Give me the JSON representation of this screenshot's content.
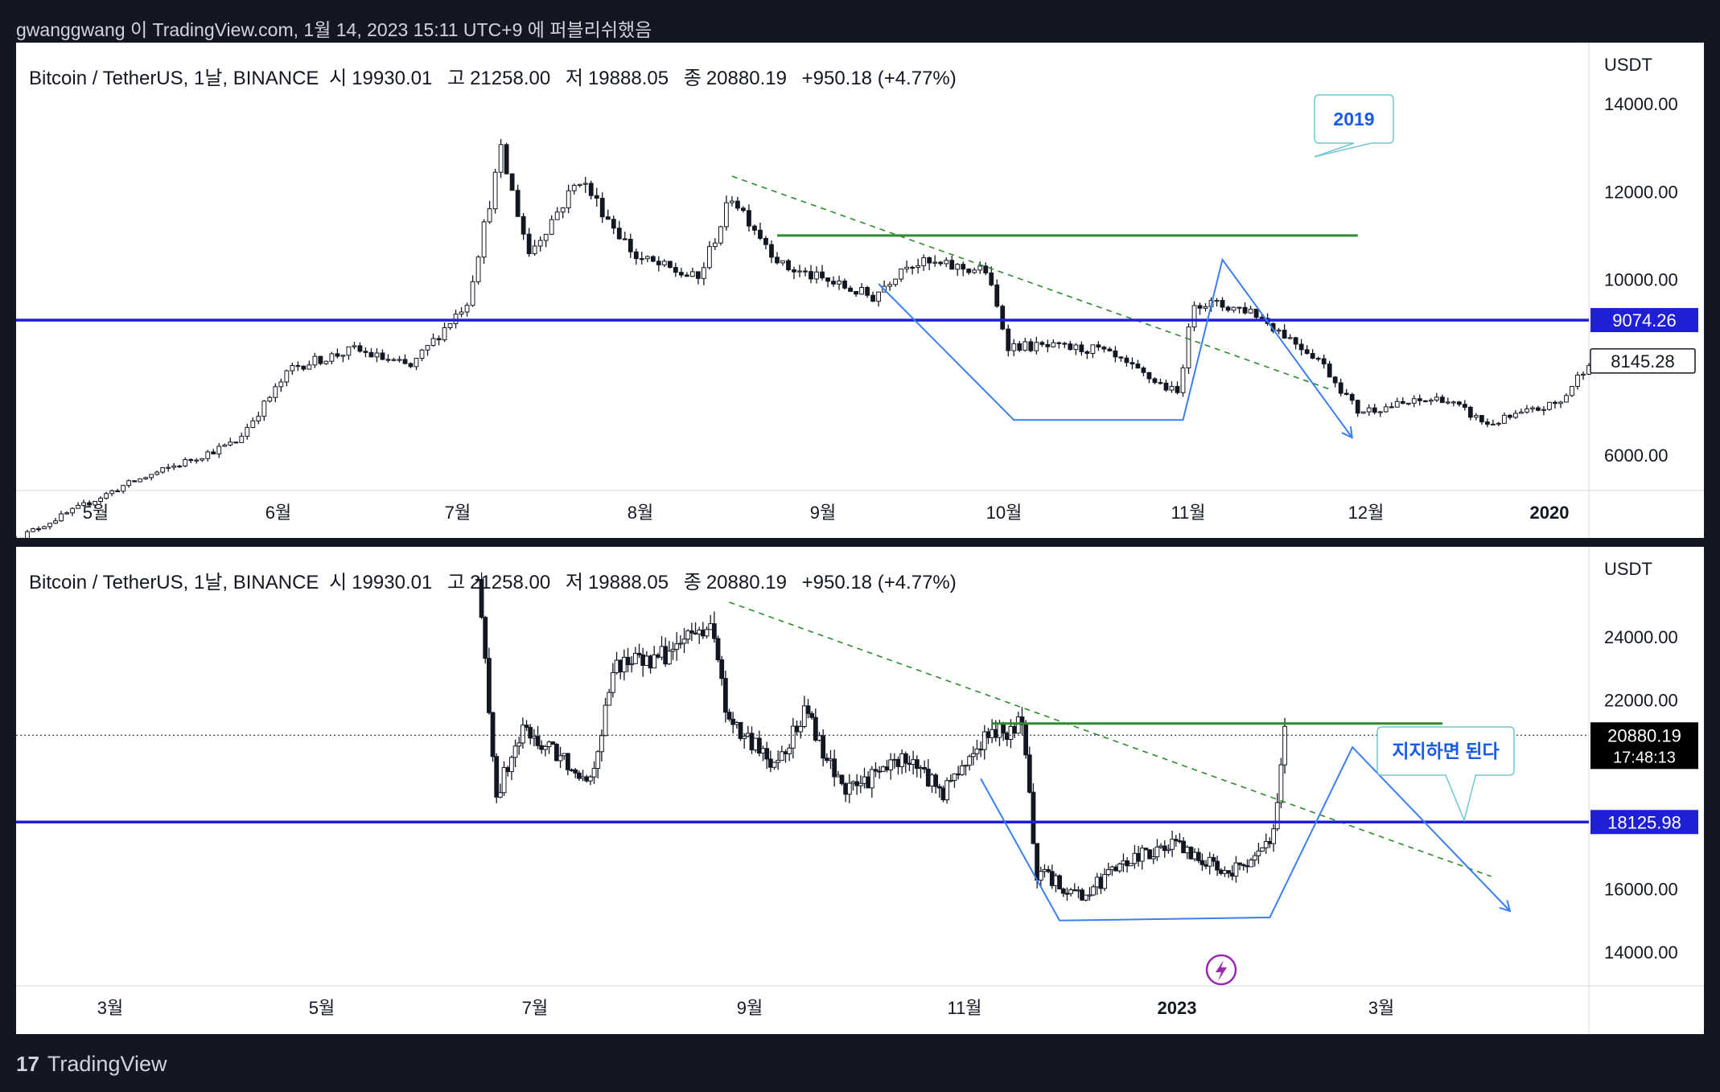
{
  "header": {
    "text": "gwanggwang 이 TradingView.com, 1월 14, 2023 15:11 UTC+9 에 퍼블리쉬했음"
  },
  "footer": {
    "brand": "TradingView",
    "logo": "17"
  },
  "colors": {
    "support": "#1f1fd6",
    "resistance": "#2e8b2e",
    "trend": "#2e8b2e",
    "path": "#3a7ff2",
    "candle": "#131722",
    "flash": "#9c27b0"
  },
  "legend": {
    "symbol": "Bitcoin / TetherUS, 1날, BINANCE",
    "open_label": "시",
    "open": "19930.01",
    "high_label": "고",
    "high": "21258.00",
    "low_label": "저",
    "low": "19888.05",
    "close_label": "종",
    "close": "20880.19",
    "change": "+950.18 (+4.77%)"
  },
  "chart_data": [
    {
      "type": "candlestick",
      "title": "Bitcoin / TetherUS, 1날, BINANCE",
      "unit": "USDT",
      "period": "2019",
      "x_labels": [
        "5월",
        "6월",
        "7월",
        "8월",
        "9월",
        "10월",
        "11월",
        "12월",
        "2020"
      ],
      "y_ticks": [
        "14000.00",
        "12000.00",
        "10000.00",
        "6000.00"
      ],
      "ylim": [
        5300,
        14600
      ],
      "support_level": "9074.26",
      "last_price": "8145.28",
      "annotation": "2019",
      "path_values": [
        {
          "x": "2019-09-01",
          "y": 9900
        },
        {
          "x": "2019-09-25",
          "y": 6800
        },
        {
          "x": "2019-10-25",
          "y": 6800
        },
        {
          "x": "2019-11-01",
          "y": 10450
        },
        {
          "x": "2019-11-24",
          "y": 6400
        }
      ],
      "close_path": [
        {
          "x": "2019-04-01",
          "c": 4100
        },
        {
          "x": "2019-04-20",
          "c": 5300
        },
        {
          "x": "2019-05-10",
          "c": 6300
        },
        {
          "x": "2019-05-20",
          "c": 8000
        },
        {
          "x": "2019-05-31",
          "c": 8400
        },
        {
          "x": "2019-06-10",
          "c": 8000
        },
        {
          "x": "2019-06-20",
          "c": 9500
        },
        {
          "x": "2019-06-26",
          "c": 12900
        },
        {
          "x": "2019-07-01",
          "c": 10600
        },
        {
          "x": "2019-07-10",
          "c": 12300
        },
        {
          "x": "2019-07-20",
          "c": 10500
        },
        {
          "x": "2019-07-31",
          "c": 10000
        },
        {
          "x": "2019-08-06",
          "c": 11900
        },
        {
          "x": "2019-08-15",
          "c": 10300
        },
        {
          "x": "2019-08-31",
          "c": 9600
        },
        {
          "x": "2019-09-06",
          "c": 10400
        },
        {
          "x": "2019-09-20",
          "c": 10200
        },
        {
          "x": "2019-09-24",
          "c": 8500
        },
        {
          "x": "2019-10-10",
          "c": 8400
        },
        {
          "x": "2019-10-24",
          "c": 7400
        },
        {
          "x": "2019-10-27",
          "c": 9500
        },
        {
          "x": "2019-11-06",
          "c": 9300
        },
        {
          "x": "2019-11-18",
          "c": 8200
        },
        {
          "x": "2019-11-25",
          "c": 7000
        },
        {
          "x": "2019-12-10",
          "c": 7300
        },
        {
          "x": "2019-12-18",
          "c": 6700
        },
        {
          "x": "2019-12-31",
          "c": 7200
        },
        {
          "x": "2020-01-05",
          "c": 8145
        }
      ]
    },
    {
      "type": "candlestick",
      "title": "Bitcoin / TetherUS, 1날, BINANCE",
      "unit": "USDT",
      "period": "2022-2023",
      "x_labels": [
        "3월",
        "5월",
        "7월",
        "9월",
        "11월",
        "2023",
        "3월"
      ],
      "y_ticks": [
        "24000.00",
        "22000.00",
        "16000.00",
        "14000.00"
      ],
      "ylim": [
        13000,
        26500
      ],
      "support_level": "18125.98",
      "last_price": "20880.19",
      "countdown": "17:48:13",
      "annotation": "지지하면 된다",
      "path_values": [
        {
          "x": "2022-10-25",
          "y": 19500
        },
        {
          "x": "2022-11-15",
          "y": 15000
        },
        {
          "x": "2023-01-10",
          "y": 15100
        },
        {
          "x": "2023-02-01",
          "y": 20500
        },
        {
          "x": "2023-03-15",
          "y": 15300
        }
      ],
      "close_path": [
        {
          "x": "2022-06-13",
          "c": 25800
        },
        {
          "x": "2022-06-18",
          "c": 19000
        },
        {
          "x": "2022-06-25",
          "c": 21000
        },
        {
          "x": "2022-07-05",
          "c": 20200
        },
        {
          "x": "2022-07-13",
          "c": 19500
        },
        {
          "x": "2022-07-20",
          "c": 23200
        },
        {
          "x": "2022-07-31",
          "c": 23300
        },
        {
          "x": "2022-08-14",
          "c": 24400
        },
        {
          "x": "2022-08-19",
          "c": 21200
        },
        {
          "x": "2022-08-31",
          "c": 20000
        },
        {
          "x": "2022-09-09",
          "c": 21700
        },
        {
          "x": "2022-09-13",
          "c": 20200
        },
        {
          "x": "2022-09-20",
          "c": 19100
        },
        {
          "x": "2022-10-05",
          "c": 20200
        },
        {
          "x": "2022-10-15",
          "c": 19100
        },
        {
          "x": "2022-10-26",
          "c": 20800
        },
        {
          "x": "2022-11-05",
          "c": 21200
        },
        {
          "x": "2022-11-09",
          "c": 16500
        },
        {
          "x": "2022-11-21",
          "c": 15800
        },
        {
          "x": "2022-12-05",
          "c": 17000
        },
        {
          "x": "2022-12-15",
          "c": 17400
        },
        {
          "x": "2022-12-25",
          "c": 16800
        },
        {
          "x": "2023-01-01",
          "c": 16600
        },
        {
          "x": "2023-01-08",
          "c": 17100
        },
        {
          "x": "2023-01-11",
          "c": 17900
        },
        {
          "x": "2023-01-14",
          "c": 20880
        }
      ]
    }
  ]
}
